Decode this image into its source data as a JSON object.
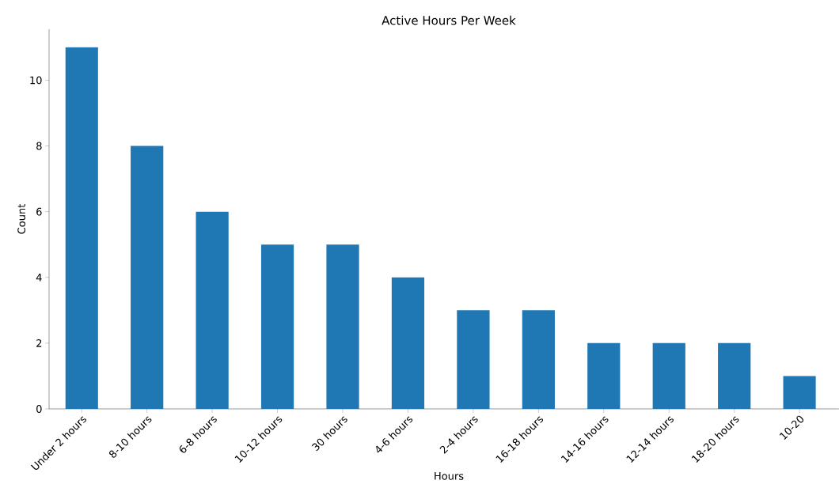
{
  "chart_data": {
    "type": "bar",
    "title": "Active Hours Per Week",
    "xlabel": "Hours",
    "ylabel": "Count",
    "categories": [
      "Under 2 hours",
      "8-10 hours",
      "6-8 hours",
      "10-12 hours",
      "30 hours",
      "4-6 hours",
      "2-4 hours",
      "16-18 hours",
      "14-16 hours",
      "12-14 hours",
      "18-20 hours",
      "10-20"
    ],
    "values": [
      11,
      8,
      6,
      5,
      5,
      4,
      3,
      3,
      2,
      2,
      2,
      1
    ],
    "color": "#1f77b4",
    "ylim": [
      0,
      11.55
    ],
    "yticks": [
      0,
      2,
      4,
      6,
      8,
      10
    ]
  }
}
